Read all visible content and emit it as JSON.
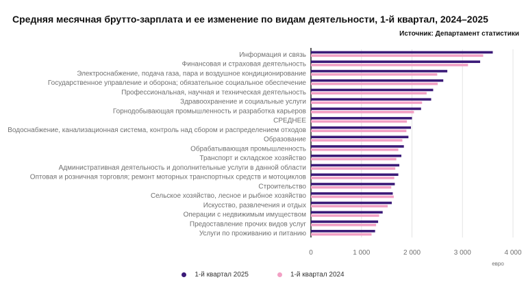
{
  "title": "Средняя месячная брутто-зарплата и ее изменение по видам деятельности, 1-й квартал, 2024–2025",
  "source": "Источник: Департамент статистики",
  "colors": {
    "series_2025": "#3b1a78",
    "series_2024": "#f2a0c4",
    "grid": "#e3e3e3",
    "axis": "#222222"
  },
  "chart_data": {
    "type": "bar",
    "orientation": "horizontal",
    "categories": [
      "Информация и связь",
      "Финансовая и страховая деятельность",
      "Электроснабжение, подача газа, пара и воздушное кондиционирование",
      "Государственное управление и оборона; обязательное социальное обеспечение",
      "Профессиональная, научная и техническая деятельность",
      "Здравоохранение и социальные услуги",
      "Горнодобывающая промышленность и разработка карьеров",
      "СРЕДНЕЕ",
      "Водоснабжение, канализационная система, контроль над сбором и распределением отходов",
      "Образование",
      "Обрабатывающая промышленность",
      "Транспорт и складское хозяйство",
      "Административная деятельность и дополнительные услуги в данной области",
      "Оптовая и розничная торговля; ремонт моторных транспортных средств и мотоциклов",
      "Строительство",
      "Сельское хозяйство, лесное и рыбное хозяйство",
      "Искусство, развлечения и отдых",
      "Операции с недвижимым имуществом",
      "Предоставление прочих видов услуг",
      "Услуги по проживанию и питанию"
    ],
    "series": [
      {
        "name": "1-й квартал 2025",
        "values": [
          3600,
          3350,
          2700,
          2620,
          2420,
          2380,
          2180,
          2000,
          1980,
          1930,
          1840,
          1790,
          1750,
          1730,
          1660,
          1620,
          1600,
          1420,
          1330,
          1270
        ]
      },
      {
        "name": "1-й квартал 2024",
        "values": [
          3410,
          3110,
          2500,
          2510,
          2290,
          2200,
          2040,
          1900,
          1890,
          1810,
          1730,
          1690,
          1670,
          1650,
          1590,
          1640,
          1520,
          1350,
          1290,
          1200
        ]
      }
    ],
    "xlim": [
      0,
      4000
    ],
    "xticks": [
      0,
      1000,
      2000,
      3000,
      4000
    ],
    "xtick_labels": [
      "0",
      "1 000",
      "2 000",
      "3 000",
      "4 000"
    ],
    "xunit": "евро",
    "grid": true,
    "legend_position": "bottom"
  }
}
